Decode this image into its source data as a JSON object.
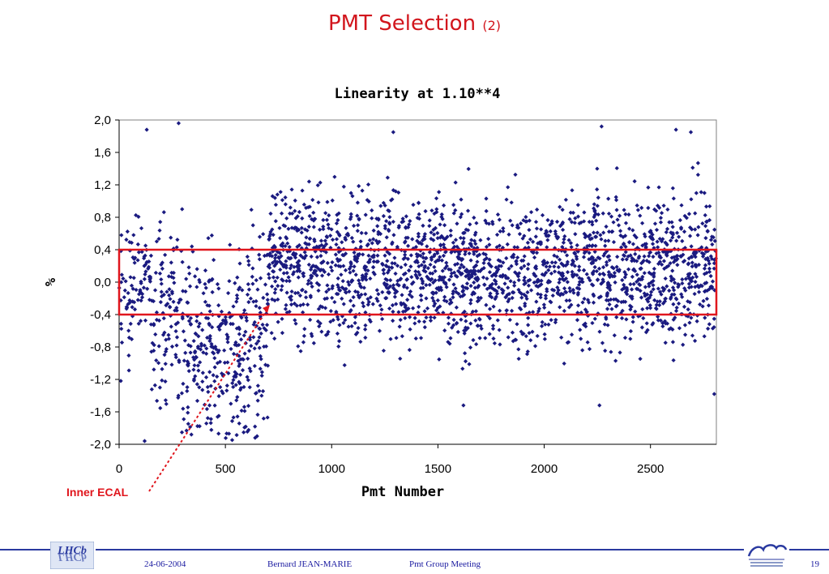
{
  "slide": {
    "title": "PMT Selection",
    "title_suffix": "(2)"
  },
  "annotation": {
    "label": "Inner ECAL"
  },
  "footer": {
    "date": "24-06-2004",
    "author": "Bernard JEAN-MARIE",
    "meeting": "Pmt Group Meeting",
    "page": "19"
  },
  "colors": {
    "title": "#d2161d",
    "points": "#1a1a80",
    "box": "#e0161d",
    "annotation": "#e0161d",
    "footer": "#2a3aa0"
  },
  "chart_data": {
    "type": "scatter",
    "title": "Linearity at 1.10**4",
    "xlabel": "Pmt Number",
    "ylabel": "%",
    "xlim": [
      0,
      2810
    ],
    "ylim": [
      -2.0,
      2.0
    ],
    "x_ticks": [
      0,
      500,
      1000,
      1500,
      2000,
      2500
    ],
    "x_tick_labels": [
      "0",
      "500",
      "1000",
      "1500",
      "2000",
      "2500"
    ],
    "y_ticks": [
      2.0,
      1.6,
      1.2,
      0.8,
      0.4,
      0.0,
      -0.4,
      -0.8,
      -1.2,
      -1.6,
      -2.0
    ],
    "y_tick_labels": [
      "2,0",
      "1,6",
      "1,2",
      "0,8",
      "0,4",
      "0,0",
      "-0,4",
      "-0,8",
      "-1,2",
      "-1,6",
      "-2,0"
    ],
    "grid": false,
    "selection_band": {
      "ymin": -0.4,
      "ymax": 0.4,
      "xmin": 0,
      "xmax": 2810
    },
    "series": [
      {
        "segments": [
          {
            "x_range": [
              0,
              150
            ],
            "center": 0.0,
            "spread": 0.45,
            "count": 90
          },
          {
            "x_range": [
              150,
              300
            ],
            "center": -0.35,
            "spread": 0.55,
            "count": 110
          },
          {
            "x_range": [
              300,
              450
            ],
            "center": -0.75,
            "spread": 0.6,
            "count": 130
          },
          {
            "x_range": [
              450,
              600
            ],
            "center": -0.95,
            "spread": 0.55,
            "count": 130
          },
          {
            "x_range": [
              600,
              700
            ],
            "center": -0.5,
            "spread": 0.6,
            "count": 90
          },
          {
            "x_range": [
              700,
              1000
            ],
            "center": 0.25,
            "spread": 0.45,
            "count": 300
          },
          {
            "x_range": [
              1000,
              1500
            ],
            "center": 0.2,
            "spread": 0.45,
            "count": 500
          },
          {
            "x_range": [
              1500,
              2000
            ],
            "center": 0.1,
            "spread": 0.45,
            "count": 500
          },
          {
            "x_range": [
              2000,
              2500
            ],
            "center": 0.15,
            "spread": 0.45,
            "count": 500
          },
          {
            "x_range": [
              2500,
              2810
            ],
            "center": 0.2,
            "spread": 0.45,
            "count": 320
          }
        ],
        "highlighted_points": [
          {
            "x": 130,
            "y": 1.88
          },
          {
            "x": 280,
            "y": 1.96
          },
          {
            "x": 120,
            "y": -1.96
          },
          {
            "x": 1290,
            "y": 1.85
          },
          {
            "x": 2270,
            "y": 1.92
          },
          {
            "x": 2620,
            "y": 1.88
          },
          {
            "x": 2690,
            "y": 1.85
          },
          {
            "x": 2800,
            "y": -1.38
          },
          {
            "x": 2260,
            "y": -1.52
          },
          {
            "x": 1620,
            "y": -1.52
          },
          {
            "x": 640,
            "y": -1.92
          },
          {
            "x": 340,
            "y": -1.88
          }
        ]
      }
    ]
  }
}
